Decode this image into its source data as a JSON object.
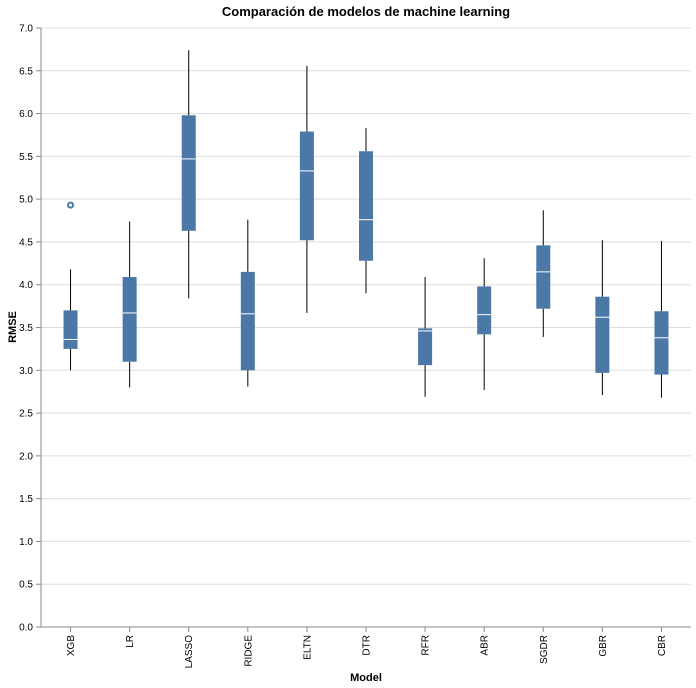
{
  "chart_data": {
    "type": "boxplot",
    "title": "Comparación de modelos de machine learning",
    "xlabel": "Model",
    "ylabel": "RMSE",
    "ylim": [
      0,
      7
    ],
    "y_ticks": [
      "0.0",
      "0.5",
      "1.0",
      "1.5",
      "2.0",
      "2.5",
      "3.0",
      "3.5",
      "4.0",
      "4.5",
      "5.0",
      "5.5",
      "6.0",
      "6.5",
      "7.0"
    ],
    "grid": true,
    "colors": {
      "box": "#4c78a8",
      "median": "#ffffff",
      "whisker": "#000000",
      "outlier": "#4c78a8"
    },
    "categories": [
      "XGB",
      "LR",
      "LASSO",
      "RIDGE",
      "ELTN",
      "DTR",
      "RFR",
      "ABR",
      "SGDR",
      "GBR",
      "CBR"
    ],
    "boxes": [
      {
        "model": "XGB",
        "min": 3.0,
        "q1": 3.25,
        "median": 3.36,
        "q3": 3.7,
        "max": 4.18,
        "outliers": [
          4.93
        ]
      },
      {
        "model": "LR",
        "min": 2.8,
        "q1": 3.1,
        "median": 3.67,
        "q3": 4.09,
        "max": 4.74,
        "outliers": []
      },
      {
        "model": "LASSO",
        "min": 3.84,
        "q1": 4.63,
        "median": 5.47,
        "q3": 5.98,
        "max": 6.74,
        "outliers": []
      },
      {
        "model": "RIDGE",
        "min": 2.81,
        "q1": 3.0,
        "median": 3.66,
        "q3": 4.15,
        "max": 4.76,
        "outliers": []
      },
      {
        "model": "ELTN",
        "min": 3.67,
        "q1": 4.52,
        "median": 5.33,
        "q3": 5.79,
        "max": 6.56,
        "outliers": []
      },
      {
        "model": "DTR",
        "min": 3.9,
        "q1": 4.28,
        "median": 4.76,
        "q3": 5.56,
        "max": 5.83,
        "outliers": []
      },
      {
        "model": "RFR",
        "min": 2.69,
        "q1": 3.06,
        "median": 3.46,
        "q3": 3.49,
        "max": 4.09,
        "outliers": []
      },
      {
        "model": "ABR",
        "min": 2.77,
        "q1": 3.42,
        "median": 3.65,
        "q3": 3.98,
        "max": 4.31,
        "outliers": []
      },
      {
        "model": "SGDR",
        "min": 3.39,
        "q1": 3.72,
        "median": 4.15,
        "q3": 4.46,
        "max": 4.87,
        "outliers": []
      },
      {
        "model": "GBR",
        "min": 2.71,
        "q1": 2.97,
        "median": 3.62,
        "q3": 3.86,
        "max": 4.52,
        "outliers": []
      },
      {
        "model": "CBR",
        "min": 2.68,
        "q1": 2.95,
        "median": 3.38,
        "q3": 3.69,
        "max": 4.51,
        "outliers": []
      }
    ]
  }
}
